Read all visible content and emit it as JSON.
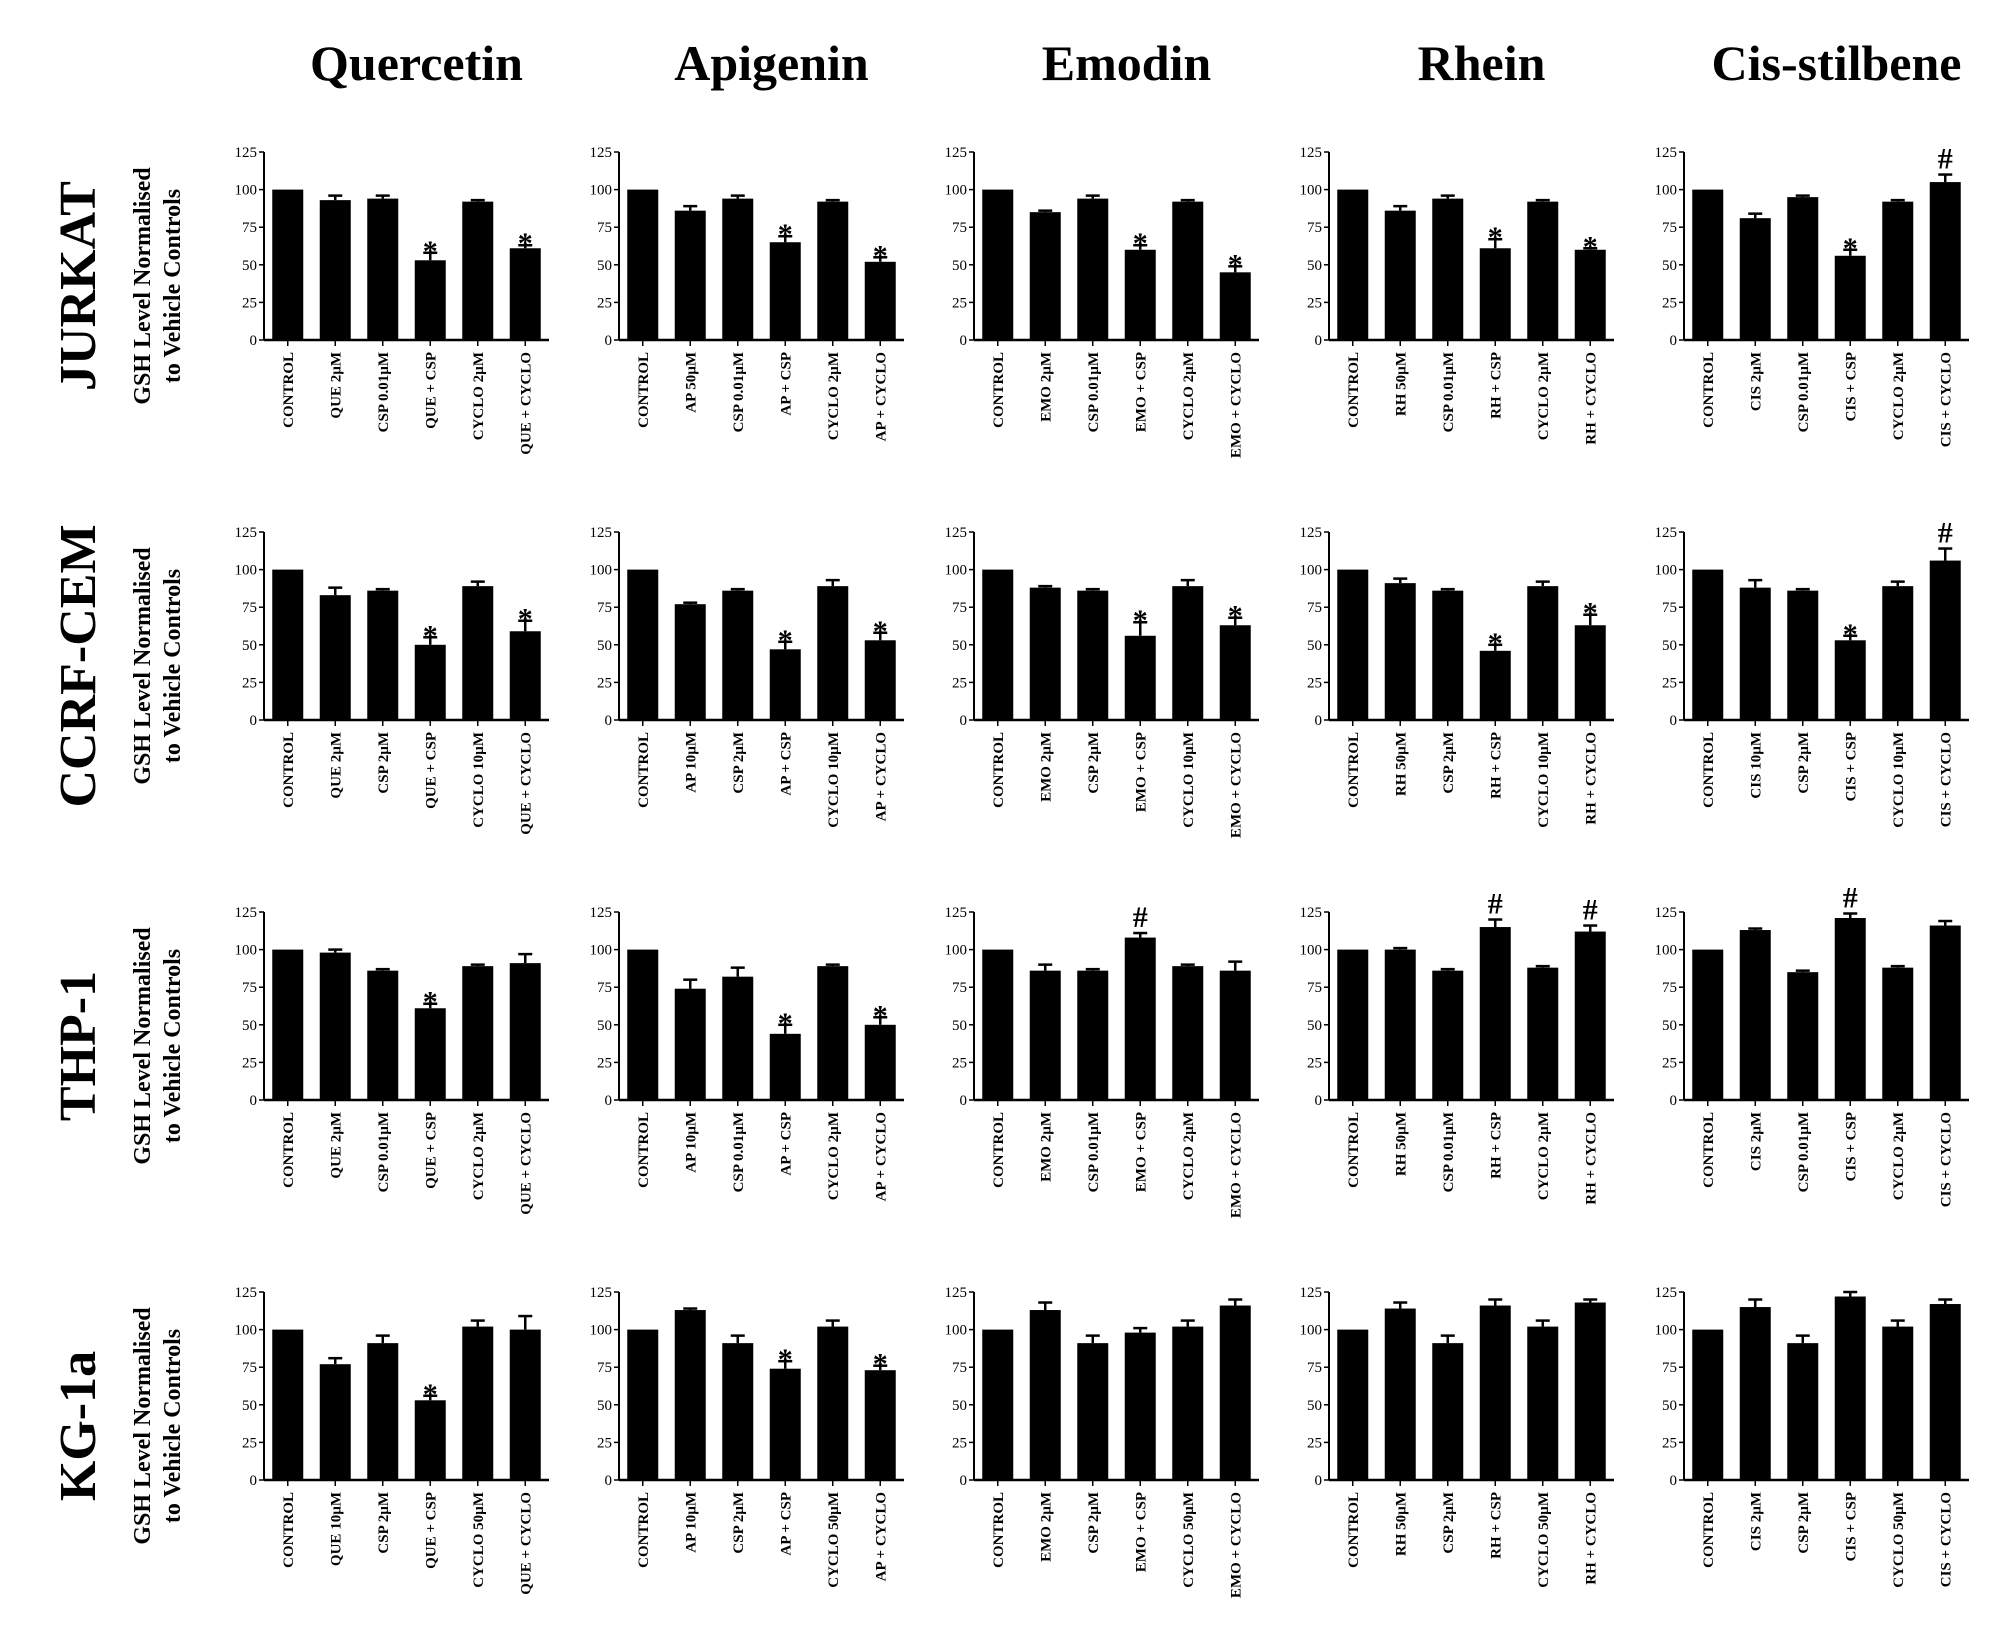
{
  "column_titles": [
    "Quercetin",
    "Apigenin",
    "Emodin",
    "Rhein",
    "Cis-stilbene"
  ],
  "row_titles": [
    "JURKAT",
    "CCRF-CEM",
    "THP-1",
    "KG-1a"
  ],
  "ylabel_lines": [
    "GSH Level Normalised",
    "to Vehicle Controls"
  ],
  "bar_color": "#000000",
  "chart_data": [
    {
      "type": "bar",
      "row": "JURKAT",
      "column": "Quercetin",
      "ylim": [
        0,
        125
      ],
      "yticks": [
        0,
        25,
        50,
        75,
        100,
        125
      ],
      "categories": [
        "CONTROL",
        "QUE 2µM",
        "CSP 0.01µM",
        "QUE + CSP",
        "CYCLO 2µM",
        "QUE + CYCLO"
      ],
      "values": [
        100,
        93,
        94,
        53,
        92,
        61
      ],
      "errors": [
        0,
        3,
        2,
        5,
        1,
        2
      ],
      "annotations": [
        "",
        "",
        "",
        "*",
        "",
        "*"
      ]
    },
    {
      "type": "bar",
      "row": "JURKAT",
      "column": "Apigenin",
      "ylim": [
        0,
        125
      ],
      "yticks": [
        0,
        25,
        50,
        75,
        100,
        125
      ],
      "categories": [
        "CONTROL",
        "AP 50µM",
        "CSP 0.01µM",
        "AP + CSP",
        "CYCLO 2µM",
        "AP + CYCLO"
      ],
      "values": [
        100,
        86,
        94,
        65,
        92,
        52
      ],
      "errors": [
        0,
        3,
        2,
        4,
        1,
        3
      ],
      "annotations": [
        "",
        "",
        "",
        "*",
        "",
        "*"
      ]
    },
    {
      "type": "bar",
      "row": "JURKAT",
      "column": "Emodin",
      "ylim": [
        0,
        125
      ],
      "yticks": [
        0,
        25,
        50,
        75,
        100,
        125
      ],
      "categories": [
        "CONTROL",
        "EMO 2µM",
        "CSP 0.01µM",
        "EMO + CSP",
        "CYCLO 2µM",
        "EMO + CYCLO"
      ],
      "values": [
        100,
        85,
        94,
        60,
        92,
        45
      ],
      "errors": [
        0,
        1,
        2,
        3,
        1,
        4
      ],
      "annotations": [
        "",
        "",
        "",
        "*",
        "",
        "*"
      ]
    },
    {
      "type": "bar",
      "row": "JURKAT",
      "column": "Rhein",
      "ylim": [
        0,
        125
      ],
      "yticks": [
        0,
        25,
        50,
        75,
        100,
        125
      ],
      "categories": [
        "CONTROL",
        "RH 50µM",
        "CSP 0.01µM",
        "RH + CSP",
        "CYCLO 2µM",
        "RH + CYCLO"
      ],
      "values": [
        100,
        86,
        94,
        61,
        92,
        60
      ],
      "errors": [
        0,
        3,
        2,
        6,
        1,
        1
      ],
      "annotations": [
        "",
        "",
        "",
        "*",
        "",
        "*"
      ]
    },
    {
      "type": "bar",
      "row": "JURKAT",
      "column": "Cis-stilbene",
      "ylim": [
        0,
        125
      ],
      "yticks": [
        0,
        25,
        50,
        75,
        100,
        125
      ],
      "categories": [
        "CONTROL",
        "CIS 2µM",
        "CSP 0.01µM",
        "CIS + CSP",
        "CYCLO 2µM",
        "CIS + CYCLO"
      ],
      "values": [
        100,
        81,
        95,
        56,
        92,
        105
      ],
      "errors": [
        0,
        3,
        1,
        4,
        1,
        5
      ],
      "annotations": [
        "",
        "",
        "",
        "*",
        "",
        "#"
      ]
    },
    {
      "type": "bar",
      "row": "CCRF-CEM",
      "column": "Quercetin",
      "ylim": [
        0,
        125
      ],
      "yticks": [
        0,
        25,
        50,
        75,
        100,
        125
      ],
      "categories": [
        "CONTROL",
        "QUE 2µM",
        "CSP 2µM",
        "QUE + CSP",
        "CYCLO 10µM",
        "QUE + CYCLO"
      ],
      "values": [
        100,
        83,
        86,
        50,
        89,
        59
      ],
      "errors": [
        0,
        5,
        1,
        5,
        3,
        7
      ],
      "annotations": [
        "",
        "",
        "",
        "*",
        "",
        "*"
      ]
    },
    {
      "type": "bar",
      "row": "CCRF-CEM",
      "column": "Apigenin",
      "ylim": [
        0,
        125
      ],
      "yticks": [
        0,
        25,
        50,
        75,
        100,
        125
      ],
      "categories": [
        "CONTROL",
        "AP 10µM",
        "CSP 2µM",
        "AP + CSP",
        "CYCLO 10µM",
        "AP + CYCLO"
      ],
      "values": [
        100,
        77,
        86,
        47,
        89,
        53
      ],
      "errors": [
        0,
        1,
        1,
        5,
        4,
        5
      ],
      "annotations": [
        "",
        "",
        "",
        "*",
        "",
        "*"
      ]
    },
    {
      "type": "bar",
      "row": "CCRF-CEM",
      "column": "Emodin",
      "ylim": [
        0,
        125
      ],
      "yticks": [
        0,
        25,
        50,
        75,
        100,
        125
      ],
      "categories": [
        "CONTROL",
        "EMO 2µM",
        "CSP 2µM",
        "EMO + CSP",
        "CYCLO 10µM",
        "EMO + CYCLO"
      ],
      "values": [
        100,
        88,
        86,
        56,
        89,
        63
      ],
      "errors": [
        0,
        1,
        1,
        9,
        4,
        5
      ],
      "annotations": [
        "",
        "",
        "",
        "*",
        "",
        "*"
      ]
    },
    {
      "type": "bar",
      "row": "CCRF-CEM",
      "column": "Rhein",
      "ylim": [
        0,
        125
      ],
      "yticks": [
        0,
        25,
        50,
        75,
        100,
        125
      ],
      "categories": [
        "CONTROL",
        "RH 50µM",
        "CSP 2µM",
        "RH + CSP",
        "CYCLO 10µM",
        "RH + CYCLO"
      ],
      "values": [
        100,
        91,
        86,
        46,
        89,
        63
      ],
      "errors": [
        0,
        3,
        1,
        4,
        3,
        7
      ],
      "annotations": [
        "",
        "",
        "",
        "*",
        "",
        "*"
      ]
    },
    {
      "type": "bar",
      "row": "CCRF-CEM",
      "column": "Cis-stilbene",
      "ylim": [
        0,
        125
      ],
      "yticks": [
        0,
        25,
        50,
        75,
        100,
        125
      ],
      "categories": [
        "CONTROL",
        "CIS 10µM",
        "CSP 2µM",
        "CIS + CSP",
        "CYCLO 10µM",
        "CIS + CYCLO"
      ],
      "values": [
        100,
        88,
        86,
        53,
        89,
        106
      ],
      "errors": [
        0,
        5,
        1,
        3,
        3,
        8
      ],
      "annotations": [
        "",
        "",
        "",
        "*",
        "",
        "#"
      ]
    },
    {
      "type": "bar",
      "row": "THP-1",
      "column": "Quercetin",
      "ylim": [
        0,
        125
      ],
      "yticks": [
        0,
        25,
        50,
        75,
        100,
        125
      ],
      "categories": [
        "CONTROL",
        "QUE 2µM",
        "CSP 0.01µM",
        "QUE + CSP",
        "CYCLO 2µM",
        "QUE + CYCLO"
      ],
      "values": [
        100,
        98,
        86,
        61,
        89,
        91
      ],
      "errors": [
        0,
        2,
        1,
        3,
        1,
        6
      ],
      "annotations": [
        "",
        "",
        "",
        "*",
        "",
        ""
      ]
    },
    {
      "type": "bar",
      "row": "THP-1",
      "column": "Apigenin",
      "ylim": [
        0,
        125
      ],
      "yticks": [
        0,
        25,
        50,
        75,
        100,
        125
      ],
      "categories": [
        "CONTROL",
        "AP 10µM",
        "CSP 0.01µM",
        "AP + CSP",
        "CYCLO 2µM",
        "AP + CYCLO"
      ],
      "values": [
        100,
        74,
        82,
        44,
        89,
        50
      ],
      "errors": [
        0,
        6,
        6,
        6,
        1,
        5
      ],
      "annotations": [
        "",
        "",
        "",
        "*",
        "",
        "*"
      ]
    },
    {
      "type": "bar",
      "row": "THP-1",
      "column": "Emodin",
      "ylim": [
        0,
        125
      ],
      "yticks": [
        0,
        25,
        50,
        75,
        100,
        125
      ],
      "categories": [
        "CONTROL",
        "EMO 2µM",
        "CSP 0.01µM",
        "EMO + CSP",
        "CYCLO 2µM",
        "EMO + CYCLO"
      ],
      "values": [
        100,
        86,
        86,
        108,
        89,
        86
      ],
      "errors": [
        0,
        4,
        1,
        3,
        1,
        6
      ],
      "annotations": [
        "",
        "",
        "",
        "#",
        "",
        ""
      ]
    },
    {
      "type": "bar",
      "row": "THP-1",
      "column": "Rhein",
      "ylim": [
        0,
        125
      ],
      "yticks": [
        0,
        25,
        50,
        75,
        100,
        125
      ],
      "categories": [
        "CONTROL",
        "RH 50µM",
        "CSP 0.01µM",
        "RH + CSP",
        "CYCLO 2µM",
        "RH + CYCLO"
      ],
      "values": [
        100,
        100,
        86,
        115,
        88,
        112
      ],
      "errors": [
        0,
        1,
        1,
        5,
        1,
        4
      ],
      "annotations": [
        "",
        "",
        "",
        "#",
        "",
        "#"
      ]
    },
    {
      "type": "bar",
      "row": "THP-1",
      "column": "Cis-stilbene",
      "ylim": [
        0,
        125
      ],
      "yticks": [
        0,
        25,
        50,
        75,
        100,
        125
      ],
      "categories": [
        "CONTROL",
        "CIS 2µM",
        "CSP 0.01µM",
        "CIS + CSP",
        "CYCLO 2µM",
        "CIS + CYCLO"
      ],
      "values": [
        100,
        113,
        85,
        121,
        88,
        116
      ],
      "errors": [
        0,
        1,
        1,
        3,
        1,
        3
      ],
      "annotations": [
        "",
        "",
        "",
        "#",
        "",
        ""
      ]
    },
    {
      "type": "bar",
      "row": "KG-1a",
      "column": "Quercetin",
      "ylim": [
        0,
        125
      ],
      "yticks": [
        0,
        25,
        50,
        75,
        100,
        125
      ],
      "categories": [
        "CONTROL",
        "QUE 10µM",
        "CSP 2µM",
        "QUE + CSP",
        "CYCLO 50µM",
        "QUE + CYCLO"
      ],
      "values": [
        100,
        77,
        91,
        53,
        102,
        100
      ],
      "errors": [
        0,
        4,
        5,
        3,
        4,
        9
      ],
      "annotations": [
        "",
        "",
        "",
        "*",
        "",
        ""
      ]
    },
    {
      "type": "bar",
      "row": "KG-1a",
      "column": "Apigenin",
      "ylim": [
        0,
        125
      ],
      "yticks": [
        0,
        25,
        50,
        75,
        100,
        125
      ],
      "categories": [
        "CONTROL",
        "AP 10µM",
        "CSP 2µM",
        "AP + CSP",
        "CYCLO 50µM",
        "AP + CYCLO"
      ],
      "values": [
        100,
        113,
        91,
        74,
        102,
        73
      ],
      "errors": [
        0,
        1,
        5,
        5,
        4,
        3
      ],
      "annotations": [
        "",
        "",
        "",
        "*",
        "",
        "*"
      ]
    },
    {
      "type": "bar",
      "row": "KG-1a",
      "column": "Emodin",
      "ylim": [
        0,
        125
      ],
      "yticks": [
        0,
        25,
        50,
        75,
        100,
        125
      ],
      "categories": [
        "CONTROL",
        "EMO 2µM",
        "CSP 2µM",
        "EMO + CSP",
        "CYCLO 50µM",
        "EMO + CYCLO"
      ],
      "values": [
        100,
        113,
        91,
        98,
        102,
        116
      ],
      "errors": [
        0,
        5,
        5,
        3,
        4,
        4
      ],
      "annotations": [
        "",
        "",
        "",
        "",
        "",
        ""
      ]
    },
    {
      "type": "bar",
      "row": "KG-1a",
      "column": "Rhein",
      "ylim": [
        0,
        125
      ],
      "yticks": [
        0,
        25,
        50,
        75,
        100,
        125
      ],
      "categories": [
        "CONTROL",
        "RH 50µM",
        "CSP 2µM",
        "RH + CSP",
        "CYCLO 50µM",
        "RH + CYCLO"
      ],
      "values": [
        100,
        114,
        91,
        116,
        102,
        118
      ],
      "errors": [
        0,
        4,
        5,
        4,
        4,
        2
      ],
      "annotations": [
        "",
        "",
        "",
        "",
        "",
        ""
      ]
    },
    {
      "type": "bar",
      "row": "KG-1a",
      "column": "Cis-stilbene",
      "ylim": [
        0,
        125
      ],
      "yticks": [
        0,
        25,
        50,
        75,
        100,
        125
      ],
      "categories": [
        "CONTROL",
        "CIS 2µM",
        "CSP 2µM",
        "CIS + CSP",
        "CYCLO 50µM",
        "CIS + CYCLO"
      ],
      "values": [
        100,
        115,
        91,
        122,
        102,
        117
      ],
      "errors": [
        0,
        5,
        5,
        3,
        4,
        3
      ],
      "annotations": [
        "",
        "",
        "",
        "",
        "",
        ""
      ]
    }
  ]
}
